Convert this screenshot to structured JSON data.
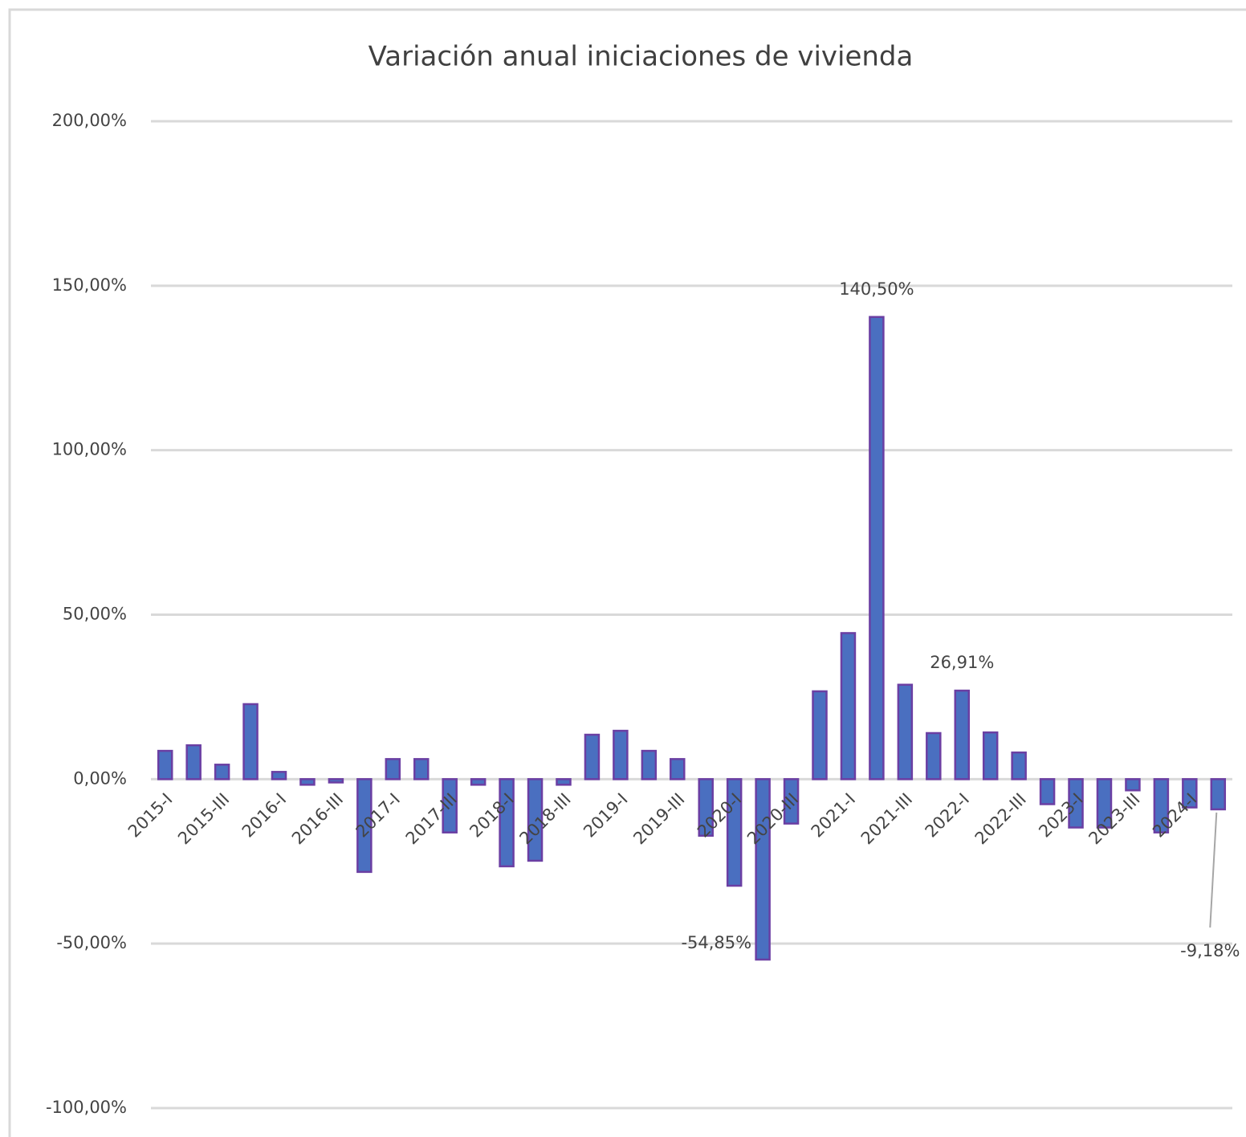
{
  "chart_data": {
    "type": "bar",
    "title": "Variación anual iniciaciones de vivienda",
    "categories": [
      "2015-I",
      null,
      "2015-III",
      null,
      "2016-I",
      null,
      "2016-III",
      null,
      "2017-I",
      null,
      "2017-III",
      null,
      "2018-I",
      null,
      "2018-III",
      null,
      "2019-I",
      null,
      "2019-III",
      null,
      "2020-I",
      null,
      "2020-III",
      null,
      "2021-I",
      null,
      "2021-III",
      null,
      "2022-I",
      null,
      "2022-III",
      null,
      "2023-I",
      null,
      "2023-III",
      null,
      "2024-I",
      null
    ],
    "values": [
      8.6,
      10.3,
      4.4,
      22.8,
      2.2,
      -1.7,
      -1.0,
      -28.2,
      6.1,
      6.1,
      -16.2,
      -1.7,
      -26.5,
      -24.8,
      -1.7,
      13.5,
      14.7,
      8.6,
      6.1,
      -17.2,
      -32.4,
      -54.85,
      -13.5,
      26.7,
      44.4,
      140.5,
      28.7,
      14.0,
      26.91,
      14.2,
      8.1,
      -7.6,
      -14.7,
      -14.7,
      -3.4,
      -16.2,
      -8.6,
      -9.18
    ],
    "value_labels": [
      null,
      null,
      null,
      null,
      null,
      null,
      null,
      null,
      null,
      null,
      null,
      null,
      null,
      null,
      null,
      null,
      null,
      null,
      null,
      null,
      null,
      "-54,85%",
      null,
      null,
      null,
      "140,50%",
      null,
      null,
      "26,91%",
      null,
      null,
      null,
      null,
      null,
      null,
      null,
      null,
      "-9,18%"
    ],
    "color": "#4a6fc0",
    "ylim": [
      -100,
      200
    ],
    "yticks": [
      {
        "value": -100,
        "label": "-100,00%"
      },
      {
        "value": -50,
        "label": "-50,00%"
      },
      {
        "value": 0,
        "label": "0,00%"
      },
      {
        "value": 50,
        "label": "50,00%"
      },
      {
        "value": 100,
        "label": "100,00%"
      },
      {
        "value": 150,
        "label": "150,00%"
      },
      {
        "value": 200,
        "label": "200,00%"
      }
    ],
    "grid": true
  }
}
